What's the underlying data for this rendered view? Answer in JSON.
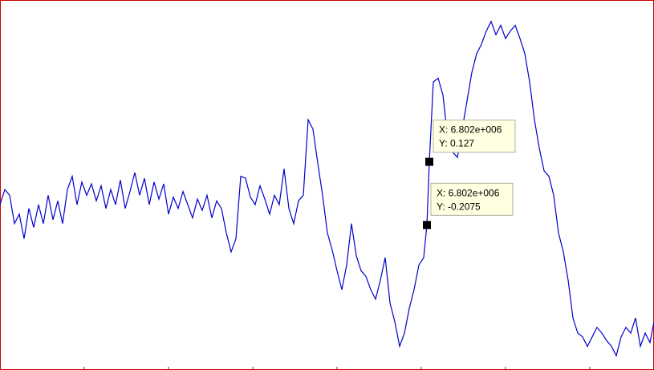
{
  "colors": {
    "frame": "#cc0000",
    "line": "#0000cc",
    "tooltip_bg": "#ffffe1",
    "tooltip_border": "#b0b0a0",
    "marker": "#000000",
    "background": "#ffffff"
  },
  "chart_data": {
    "type": "line",
    "title": "",
    "xlabel": "",
    "ylabel": "",
    "grid": false,
    "legend": "none",
    "ylim": [
      -0.95,
      0.95
    ],
    "series": [
      {
        "color": "#0000cc",
        "points": [
          [
            0,
            -0.1
          ],
          [
            6,
            -0.02
          ],
          [
            12,
            -0.05
          ],
          [
            18,
            -0.2
          ],
          [
            24,
            -0.15
          ],
          [
            30,
            -0.28
          ],
          [
            36,
            -0.12
          ],
          [
            42,
            -0.22
          ],
          [
            48,
            -0.1
          ],
          [
            54,
            -0.2
          ],
          [
            60,
            -0.05
          ],
          [
            66,
            -0.18
          ],
          [
            72,
            -0.08
          ],
          [
            78,
            -0.2
          ],
          [
            84,
            -0.02
          ],
          [
            90,
            0.05
          ],
          [
            96,
            -0.1
          ],
          [
            102,
            0.02
          ],
          [
            108,
            -0.05
          ],
          [
            114,
            0.01
          ],
          [
            120,
            -0.08
          ],
          [
            126,
            0.0
          ],
          [
            132,
            -0.12
          ],
          [
            138,
            -0.02
          ],
          [
            144,
            -0.1
          ],
          [
            150,
            0.03
          ],
          [
            156,
            -0.12
          ],
          [
            162,
            -0.03
          ],
          [
            168,
            0.07
          ],
          [
            174,
            -0.05
          ],
          [
            180,
            0.04
          ],
          [
            186,
            -0.1
          ],
          [
            192,
            0.02
          ],
          [
            198,
            -0.07
          ],
          [
            204,
            0.01
          ],
          [
            210,
            -0.15
          ],
          [
            216,
            -0.06
          ],
          [
            222,
            -0.12
          ],
          [
            228,
            -0.03
          ],
          [
            234,
            -0.1
          ],
          [
            240,
            -0.17
          ],
          [
            246,
            -0.07
          ],
          [
            252,
            -0.13
          ],
          [
            258,
            -0.05
          ],
          [
            264,
            -0.17
          ],
          [
            270,
            -0.08
          ],
          [
            276,
            -0.12
          ],
          [
            282,
            -0.25
          ],
          [
            288,
            -0.35
          ],
          [
            294,
            -0.28
          ],
          [
            300,
            0.05
          ],
          [
            306,
            0.04
          ],
          [
            312,
            -0.06
          ],
          [
            318,
            -0.1
          ],
          [
            324,
            0.0
          ],
          [
            330,
            -0.07
          ],
          [
            336,
            -0.15
          ],
          [
            342,
            -0.05
          ],
          [
            348,
            -0.1
          ],
          [
            354,
            0.09
          ],
          [
            360,
            -0.12
          ],
          [
            366,
            -0.2
          ],
          [
            372,
            -0.08
          ],
          [
            378,
            -0.05
          ],
          [
            384,
            0.35
          ],
          [
            390,
            0.3
          ],
          [
            396,
            0.12
          ],
          [
            402,
            -0.05
          ],
          [
            408,
            -0.25
          ],
          [
            414,
            -0.34
          ],
          [
            420,
            -0.45
          ],
          [
            426,
            -0.55
          ],
          [
            432,
            -0.42
          ],
          [
            438,
            -0.2
          ],
          [
            444,
            -0.37
          ],
          [
            450,
            -0.45
          ],
          [
            456,
            -0.48
          ],
          [
            462,
            -0.55
          ],
          [
            468,
            -0.6
          ],
          [
            474,
            -0.5
          ],
          [
            480,
            -0.38
          ],
          [
            486,
            -0.62
          ],
          [
            492,
            -0.72
          ],
          [
            498,
            -0.85
          ],
          [
            504,
            -0.78
          ],
          [
            510,
            -0.65
          ],
          [
            516,
            -0.55
          ],
          [
            522,
            -0.42
          ],
          [
            528,
            -0.38
          ],
          [
            532,
            -0.2075
          ],
          [
            535,
            0.127
          ],
          [
            540,
            0.55
          ],
          [
            546,
            0.57
          ],
          [
            552,
            0.48
          ],
          [
            558,
            0.25
          ],
          [
            564,
            0.18
          ],
          [
            570,
            0.15
          ],
          [
            576,
            0.3
          ],
          [
            582,
            0.45
          ],
          [
            588,
            0.6
          ],
          [
            594,
            0.7
          ],
          [
            600,
            0.75
          ],
          [
            606,
            0.82
          ],
          [
            612,
            0.87
          ],
          [
            618,
            0.8
          ],
          [
            624,
            0.85
          ],
          [
            630,
            0.78
          ],
          [
            636,
            0.82
          ],
          [
            642,
            0.85
          ],
          [
            648,
            0.78
          ],
          [
            654,
            0.7
          ],
          [
            660,
            0.55
          ],
          [
            666,
            0.35
          ],
          [
            672,
            0.2
          ],
          [
            678,
            0.08
          ],
          [
            684,
            0.05
          ],
          [
            690,
            -0.05
          ],
          [
            696,
            -0.25
          ],
          [
            702,
            -0.35
          ],
          [
            708,
            -0.5
          ],
          [
            714,
            -0.7
          ],
          [
            720,
            -0.78
          ],
          [
            726,
            -0.8
          ],
          [
            732,
            -0.85
          ],
          [
            738,
            -0.8
          ],
          [
            744,
            -0.75
          ],
          [
            750,
            -0.78
          ],
          [
            756,
            -0.82
          ],
          [
            762,
            -0.85
          ],
          [
            768,
            -0.9
          ],
          [
            774,
            -0.8
          ],
          [
            780,
            -0.75
          ],
          [
            786,
            -0.78
          ],
          [
            792,
            -0.7
          ],
          [
            798,
            -0.85
          ],
          [
            804,
            -0.78
          ],
          [
            810,
            -0.83
          ],
          [
            815,
            -0.72
          ]
        ]
      }
    ],
    "datatips": [
      {
        "x_label": "X: 6.802e+006",
        "y_label": "Y: 0.127",
        "x": 6802000,
        "y": 0.127,
        "plot_x": 535
      },
      {
        "x_label": "X: 6.802e+006",
        "y_label": "Y: -0.2075",
        "x": 6802000,
        "y": -0.2075,
        "plot_x": 532
      }
    ]
  }
}
